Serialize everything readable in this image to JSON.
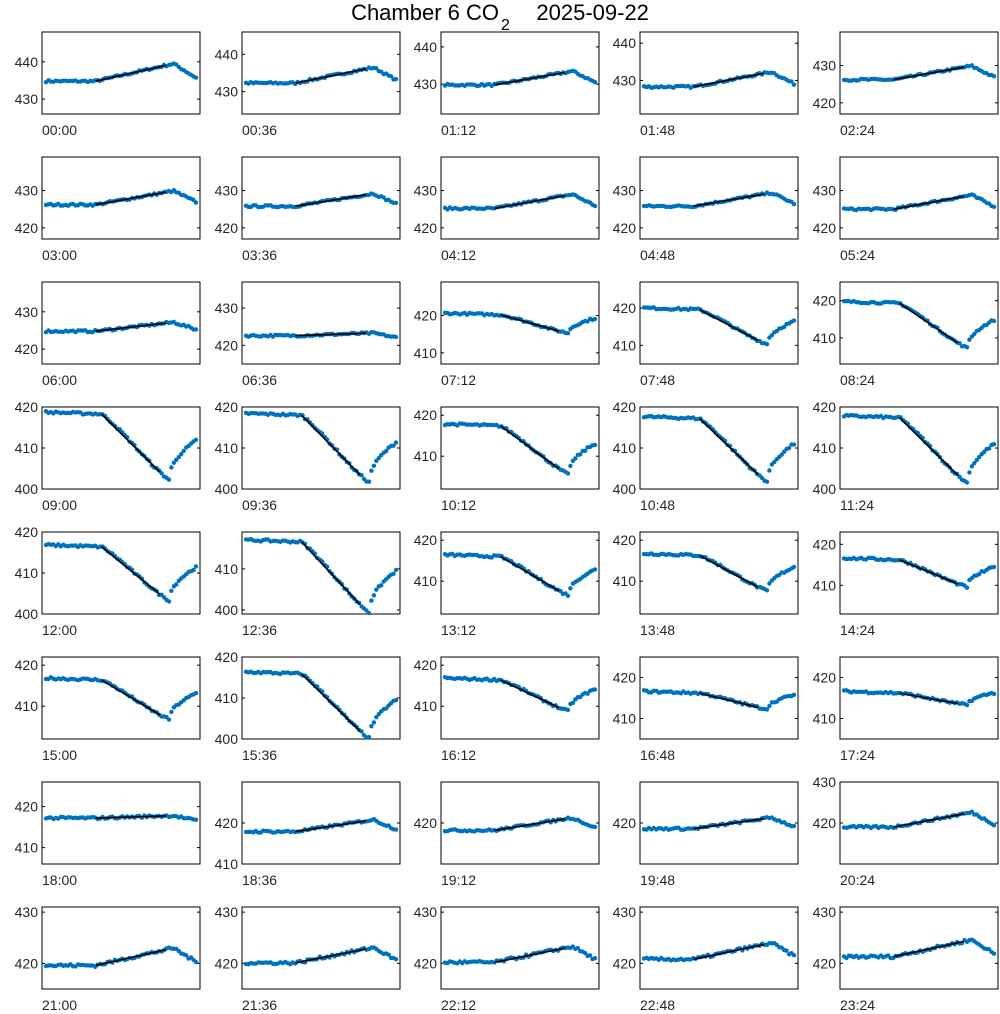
{
  "title": {
    "prefix": "Chamber 6 CO",
    "subscript": "2",
    "date": "2025-09-22"
  },
  "colors": {
    "points": "#0072BD",
    "fit": "#000000",
    "axes": "#000000"
  },
  "chart_data": {
    "type": "scatter",
    "layout": "8 rows x 5 columns of small multiples",
    "x_ticks": "none",
    "grid": false,
    "panels": [
      {
        "label": "00:00",
        "ylim": [
          426,
          448
        ],
        "yticks": [
          430,
          440
        ],
        "base": 434.8,
        "peak": 439.5,
        "shape": "rise"
      },
      {
        "label": "00:36",
        "ylim": [
          424,
          446
        ],
        "yticks": [
          430,
          440
        ],
        "base": 432.3,
        "peak": 436.5,
        "shape": "rise"
      },
      {
        "label": "01:12",
        "ylim": [
          422,
          444
        ],
        "yticks": [
          430,
          440
        ],
        "base": 429.8,
        "peak": 433.5,
        "shape": "rise"
      },
      {
        "label": "01:48",
        "ylim": [
          421,
          443
        ],
        "yticks": [
          430,
          440
        ],
        "base": 428.3,
        "peak": 432.3,
        "shape": "rise"
      },
      {
        "label": "02:24",
        "ylim": [
          417,
          439
        ],
        "yticks": [
          420,
          430
        ],
        "base": 426.2,
        "peak": 429.9,
        "shape": "rise"
      },
      {
        "label": "03:00",
        "ylim": [
          417,
          439
        ],
        "yticks": [
          420,
          430
        ],
        "base": 426.2,
        "peak": 429.9,
        "shape": "rise"
      },
      {
        "label": "03:36",
        "ylim": [
          417,
          439
        ],
        "yticks": [
          420,
          430
        ],
        "base": 425.8,
        "peak": 429.2,
        "shape": "rise"
      },
      {
        "label": "04:12",
        "ylim": [
          417,
          439
        ],
        "yticks": [
          420,
          430
        ],
        "base": 425.2,
        "peak": 429.0,
        "shape": "rise"
      },
      {
        "label": "04:48",
        "ylim": [
          417,
          439
        ],
        "yticks": [
          420,
          430
        ],
        "base": 425.8,
        "peak": 429.4,
        "shape": "rise"
      },
      {
        "label": "05:24",
        "ylim": [
          417,
          439
        ],
        "yticks": [
          420,
          430
        ],
        "base": 425.0,
        "peak": 428.8,
        "shape": "rise"
      },
      {
        "label": "06:00",
        "ylim": [
          416,
          438
        ],
        "yticks": [
          420,
          430
        ],
        "base": 424.8,
        "peak": 427.2,
        "shape": "rise"
      },
      {
        "label": "06:36",
        "ylim": [
          415,
          437
        ],
        "yticks": [
          420,
          430
        ],
        "base": 422.6,
        "peak": 423.3,
        "shape": "rise"
      },
      {
        "label": "07:12",
        "ylim": [
          407,
          429
        ],
        "yticks": [
          410,
          420
        ],
        "base": 420.2,
        "dip": 415.3,
        "shape": "dip"
      },
      {
        "label": "07:48",
        "ylim": [
          405,
          427
        ],
        "yticks": [
          410,
          420
        ],
        "base": 419.6,
        "dip": 410.3,
        "shape": "dip"
      },
      {
        "label": "08:24",
        "ylim": [
          403,
          425
        ],
        "yticks": [
          410,
          420
        ],
        "base": 419.3,
        "dip": 407.3,
        "shape": "dip"
      },
      {
        "label": "09:00",
        "ylim": [
          400,
          420
        ],
        "yticks": [
          400,
          410,
          420
        ],
        "base": 418.3,
        "dip": 402.3,
        "shape": "dip"
      },
      {
        "label": "09:36",
        "ylim": [
          400,
          420
        ],
        "yticks": [
          400,
          410,
          420
        ],
        "base": 418.0,
        "dip": 401.6,
        "shape": "dip"
      },
      {
        "label": "10:12",
        "ylim": [
          402,
          422
        ],
        "yticks": [
          410,
          420
        ],
        "base": 417.4,
        "dip": 405.6,
        "shape": "dip"
      },
      {
        "label": "10:48",
        "ylim": [
          400,
          420
        ],
        "yticks": [
          400,
          410,
          420
        ],
        "base": 417.2,
        "dip": 401.8,
        "shape": "dip"
      },
      {
        "label": "11:24",
        "ylim": [
          400,
          420
        ],
        "yticks": [
          400,
          410,
          420
        ],
        "base": 417.4,
        "dip": 401.5,
        "shape": "dip"
      },
      {
        "label": "12:00",
        "ylim": [
          400,
          420
        ],
        "yticks": [
          400,
          410,
          420
        ],
        "base": 416.4,
        "dip": 403.3,
        "shape": "dip"
      },
      {
        "label": "12:36",
        "ylim": [
          399,
          419
        ],
        "yticks": [
          400,
          410
        ],
        "base": 416.6,
        "dip": 399.4,
        "shape": "dip"
      },
      {
        "label": "13:12",
        "ylim": [
          402,
          422
        ],
        "yticks": [
          410,
          420
        ],
        "base": 416.0,
        "dip": 406.6,
        "shape": "dip"
      },
      {
        "label": "13:48",
        "ylim": [
          402,
          422
        ],
        "yticks": [
          410,
          420
        ],
        "base": 416.3,
        "dip": 407.6,
        "shape": "dip"
      },
      {
        "label": "14:24",
        "ylim": [
          403,
          423
        ],
        "yticks": [
          410,
          420
        ],
        "base": 416.2,
        "dip": 409.6,
        "shape": "dip"
      },
      {
        "label": "15:00",
        "ylim": [
          402,
          422
        ],
        "yticks": [
          410,
          420
        ],
        "base": 416.4,
        "dip": 406.8,
        "shape": "dip"
      },
      {
        "label": "15:36",
        "ylim": [
          400,
          420
        ],
        "yticks": [
          400,
          410,
          420
        ],
        "base": 415.9,
        "dip": 400.2,
        "shape": "dip"
      },
      {
        "label": "16:12",
        "ylim": [
          402,
          422
        ],
        "yticks": [
          410,
          420
        ],
        "base": 416.4,
        "dip": 408.8,
        "shape": "dip"
      },
      {
        "label": "16:48",
        "ylim": [
          405,
          425
        ],
        "yticks": [
          410,
          420
        ],
        "base": 416.2,
        "dip": 412.3,
        "shape": "dip"
      },
      {
        "label": "17:24",
        "ylim": [
          405,
          425
        ],
        "yticks": [
          410,
          420
        ],
        "base": 416.2,
        "dip": 413.3,
        "shape": "dip"
      },
      {
        "label": "18:00",
        "ylim": [
          406,
          426
        ],
        "yticks": [
          410,
          420
        ],
        "base": 417.2,
        "peak": 417.8,
        "shape": "flat"
      },
      {
        "label": "18:36",
        "ylim": [
          410,
          430
        ],
        "yticks": [
          410,
          420
        ],
        "base": 417.9,
        "peak": 420.8,
        "shape": "rise"
      },
      {
        "label": "19:12",
        "ylim": [
          410,
          430
        ],
        "yticks": [
          420
        ],
        "base": 418.2,
        "peak": 421.3,
        "shape": "rise"
      },
      {
        "label": "19:48",
        "ylim": [
          410,
          430
        ],
        "yticks": [
          420
        ],
        "base": 418.6,
        "peak": 421.3,
        "shape": "rise"
      },
      {
        "label": "20:24",
        "ylim": [
          410,
          430
        ],
        "yticks": [
          420,
          430
        ],
        "base": 419.0,
        "peak": 422.6,
        "shape": "rise"
      },
      {
        "label": "21:00",
        "ylim": [
          415,
          431
        ],
        "yticks": [
          420,
          430
        ],
        "base": 419.6,
        "peak": 423.0,
        "shape": "rise"
      },
      {
        "label": "21:36",
        "ylim": [
          415,
          431
        ],
        "yticks": [
          420,
          430
        ],
        "base": 420.1,
        "peak": 423.1,
        "shape": "rise"
      },
      {
        "label": "22:12",
        "ylim": [
          415,
          431
        ],
        "yticks": [
          420,
          430
        ],
        "base": 420.2,
        "peak": 423.3,
        "shape": "rise"
      },
      {
        "label": "22:48",
        "ylim": [
          415,
          431
        ],
        "yticks": [
          420,
          430
        ],
        "base": 420.8,
        "peak": 424.0,
        "shape": "rise"
      },
      {
        "label": "23:24",
        "ylim": [
          415,
          431
        ],
        "yticks": [
          420,
          430
        ],
        "base": 421.3,
        "peak": 424.6,
        "shape": "rise"
      }
    ]
  }
}
